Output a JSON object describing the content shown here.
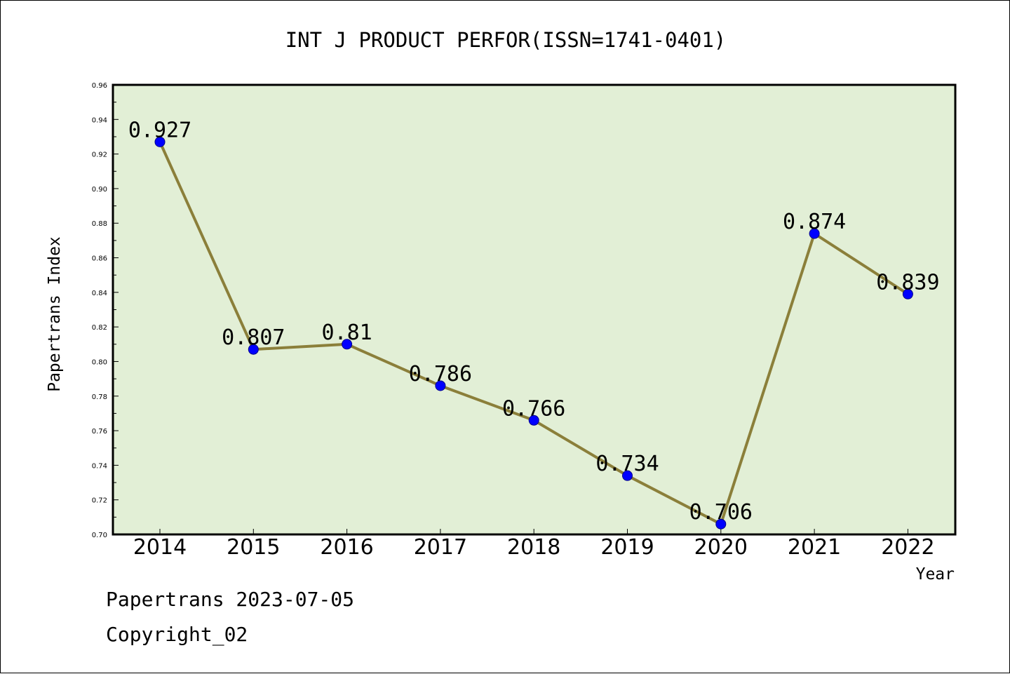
{
  "chart_data": {
    "type": "line",
    "title": "INT J PRODUCT PERFOR(ISSN=1741-0401)",
    "xlabel": "Year",
    "ylabel": "Papertrans Index",
    "categories": [
      "2014",
      "2015",
      "2016",
      "2017",
      "2018",
      "2019",
      "2020",
      "2021",
      "2022"
    ],
    "series": [
      {
        "values": [
          0.927,
          0.807,
          0.81,
          0.786,
          0.766,
          0.734,
          0.706,
          0.874,
          0.839
        ],
        "labels": [
          "0.927",
          "0.807",
          "0.81",
          "0.786",
          "0.766",
          "0.734",
          "0.706",
          "0.874",
          "0.839"
        ]
      }
    ],
    "ylim": [
      0.7,
      0.96
    ],
    "yticks": [
      "0.70",
      "0.72",
      "0.74",
      "0.76",
      "0.78",
      "0.80",
      "0.82",
      "0.84",
      "0.86",
      "0.88",
      "0.90",
      "0.92",
      "0.94",
      "0.96"
    ],
    "grid": false,
    "colors": {
      "plot_background": "#e2efd6",
      "line": "#8b7f3a",
      "marker": "#0000ff"
    }
  },
  "footer": {
    "line1": "Papertrans 2023-07-05",
    "line2": "Copyright_02"
  }
}
